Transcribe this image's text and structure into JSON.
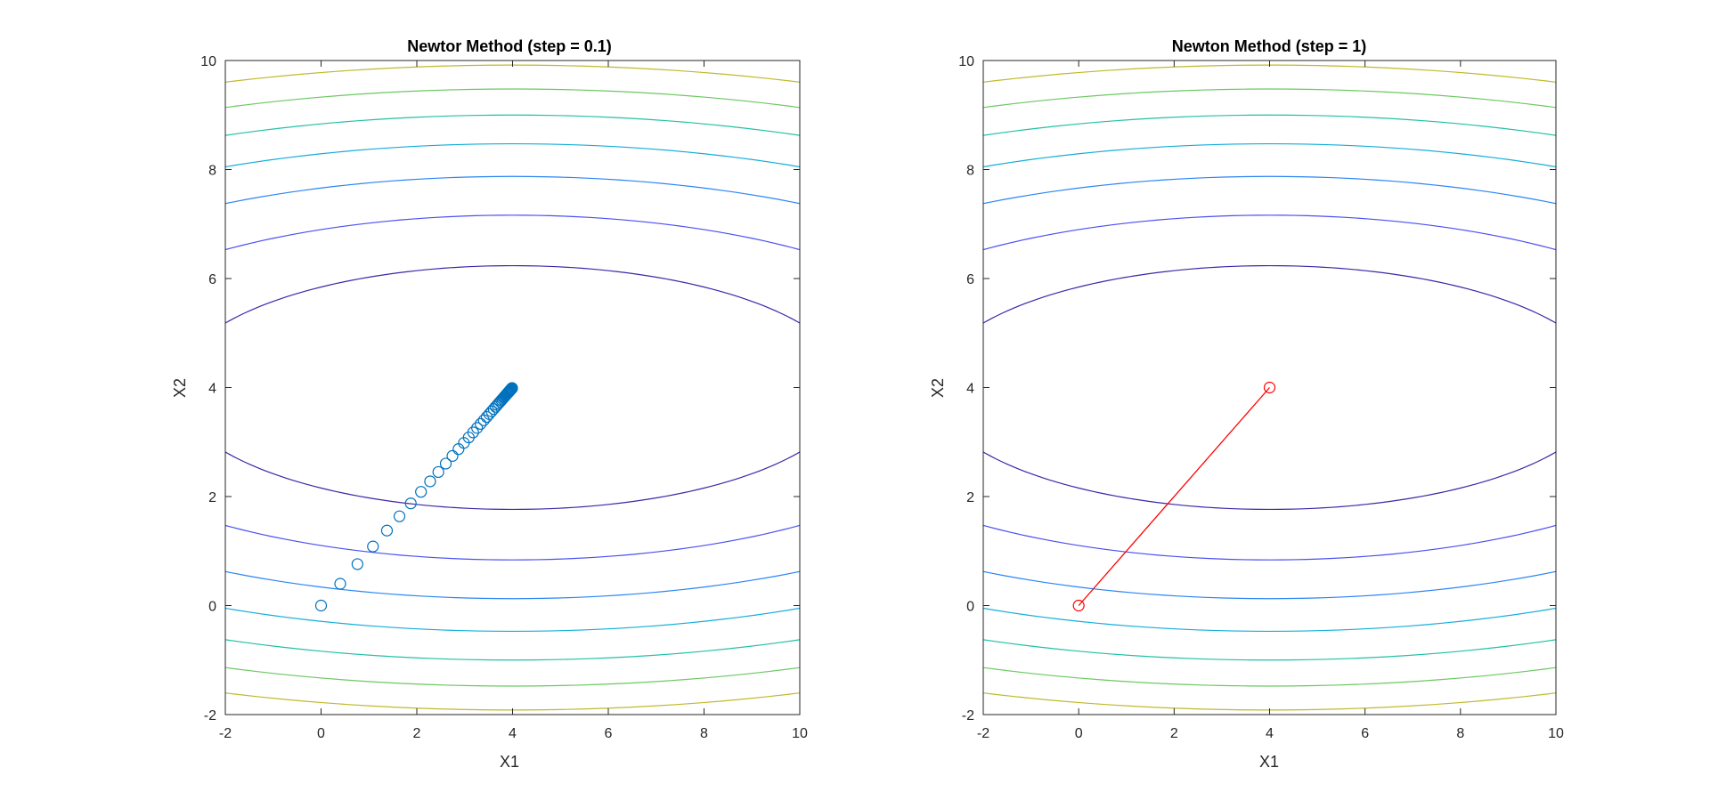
{
  "chart_data": [
    {
      "type": "contour+scatter",
      "title": "Newtor Method (step = 0.1)",
      "xlabel": "X1",
      "ylabel": "X2",
      "xlim": [
        -2,
        10
      ],
      "ylim": [
        -2,
        10
      ],
      "xticks": [
        "-2",
        "0",
        "2",
        "4",
        "6",
        "8",
        "10"
      ],
      "yticks": [
        "-2",
        "0",
        "2",
        "4",
        "6",
        "8",
        "10"
      ],
      "grid": false,
      "contour": {
        "center": [
          4,
          4
        ],
        "function": "f(x1,x2) = (x1-4)^2 + 10*(x2-4)^2",
        "levels": [
          50,
          100,
          150,
          200,
          250,
          300,
          350,
          400,
          450
        ],
        "colors": [
          "#3e26a8",
          "#4a4ff0",
          "#2a85f4",
          "#14aeda",
          "#21c1a5",
          "#6cc862",
          "#c0b92a",
          "#fbb42f",
          "#f9e721"
        ]
      },
      "series": [
        {
          "style": "markers",
          "marker": "circle",
          "color": "#0072bd",
          "x": [
            0,
            0.4,
            0.76,
            1.084,
            1.376,
            1.638,
            1.874,
            2.087,
            2.278,
            2.45,
            2.605,
            2.745,
            2.871,
            2.984,
            3.085,
            3.177,
            3.259,
            3.333,
            3.4,
            3.46,
            3.514,
            3.563,
            3.606,
            3.646,
            3.681,
            3.713,
            3.742,
            3.768,
            3.791,
            3.812,
            3.831,
            3.848,
            3.863,
            3.877,
            3.889,
            3.9,
            3.91,
            3.919,
            3.927,
            3.934,
            3.941,
            3.947,
            3.952,
            3.957,
            3.961,
            3.965,
            3.968,
            3.971,
            3.974,
            3.977,
            3.979,
            3.981,
            3.983,
            3.985,
            3.986,
            3.988,
            3.989,
            3.99
          ],
          "y": [
            0,
            0.4,
            0.76,
            1.084,
            1.376,
            1.638,
            1.874,
            2.087,
            2.278,
            2.45,
            2.605,
            2.745,
            2.871,
            2.984,
            3.085,
            3.177,
            3.259,
            3.333,
            3.4,
            3.46,
            3.514,
            3.563,
            3.606,
            3.646,
            3.681,
            3.713,
            3.742,
            3.768,
            3.791,
            3.812,
            3.831,
            3.848,
            3.863,
            3.877,
            3.889,
            3.9,
            3.91,
            3.919,
            3.927,
            3.934,
            3.941,
            3.947,
            3.952,
            3.957,
            3.961,
            3.965,
            3.968,
            3.971,
            3.974,
            3.977,
            3.979,
            3.981,
            3.983,
            3.985,
            3.986,
            3.988,
            3.989,
            3.99
          ]
        }
      ]
    },
    {
      "type": "contour+line",
      "title": "Newton Method (step = 1)",
      "xlabel": "X1",
      "ylabel": "X2",
      "xlim": [
        -2,
        10
      ],
      "ylim": [
        -2,
        10
      ],
      "xticks": [
        "-2",
        "0",
        "2",
        "4",
        "6",
        "8",
        "10"
      ],
      "yticks": [
        "-2",
        "0",
        "2",
        "4",
        "6",
        "8",
        "10"
      ],
      "grid": false,
      "contour": {
        "center": [
          4,
          4
        ],
        "function": "f(x1,x2) = (x1-4)^2 + 10*(x2-4)^2",
        "levels": [
          50,
          100,
          150,
          200,
          250,
          300,
          350,
          400,
          450
        ],
        "colors": [
          "#3e26a8",
          "#4a4ff0",
          "#2a85f4",
          "#14aeda",
          "#21c1a5",
          "#6cc862",
          "#c0b92a",
          "#fbb42f",
          "#f9e721"
        ]
      },
      "series": [
        {
          "style": "line+markers",
          "marker": "circle",
          "color": "#ff0000",
          "x": [
            0,
            4
          ],
          "y": [
            0,
            4
          ]
        }
      ]
    }
  ]
}
